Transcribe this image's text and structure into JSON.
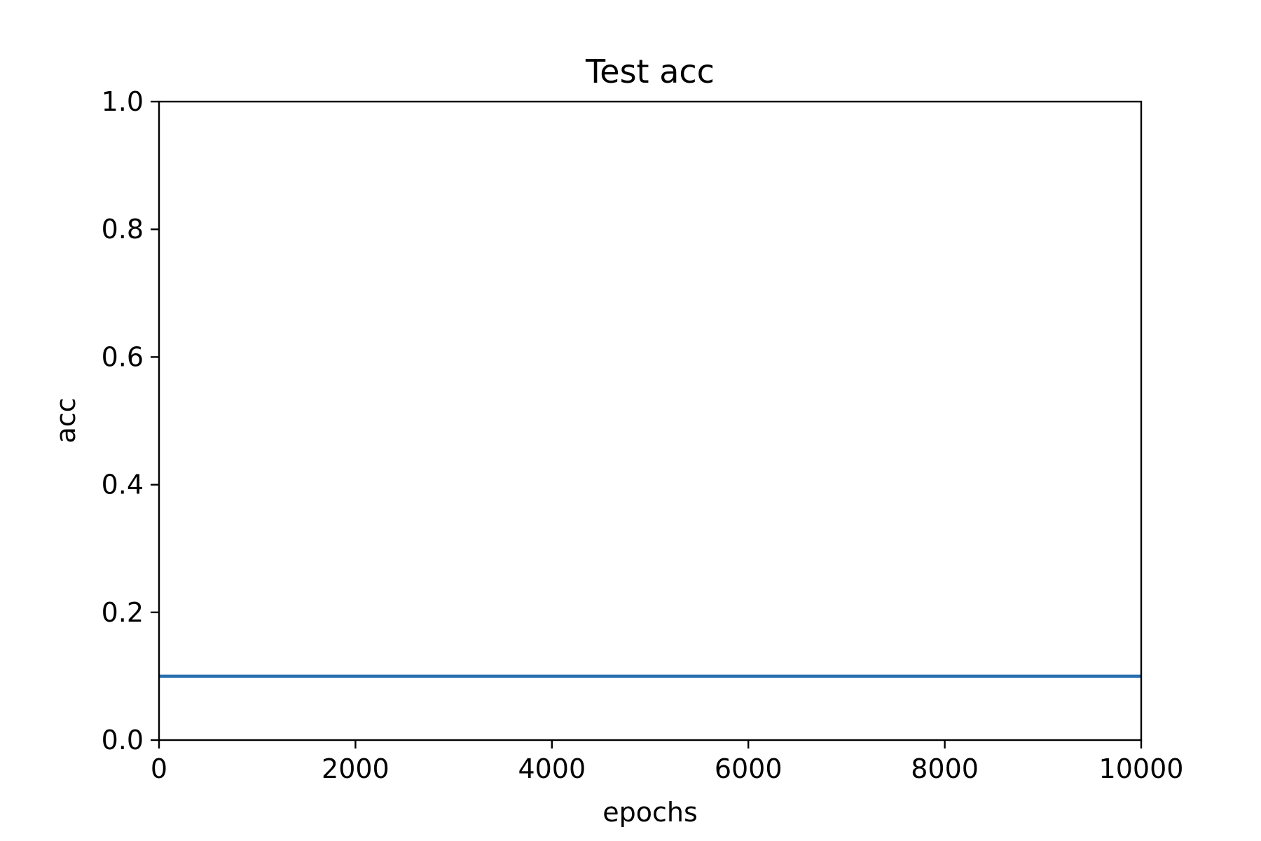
{
  "chart_data": {
    "type": "line",
    "title": "Test acc",
    "xlabel": "epochs",
    "ylabel": "acc",
    "xlim": [
      0,
      10000
    ],
    "ylim": [
      0.0,
      1.0
    ],
    "xticks": [
      0,
      2000,
      4000,
      6000,
      8000,
      10000
    ],
    "xtick_labels": [
      "0",
      "2000",
      "4000",
      "6000",
      "8000",
      "10000"
    ],
    "yticks": [
      0.0,
      0.2,
      0.4,
      0.6,
      0.8,
      1.0
    ],
    "ytick_labels": [
      "0.0",
      "0.2",
      "0.4",
      "0.6",
      "0.8",
      "1.0"
    ],
    "grid": false,
    "series": [
      {
        "color": "#2a6fb0",
        "x": [
          0,
          10000
        ],
        "y": [
          0.1,
          0.1
        ]
      }
    ]
  }
}
